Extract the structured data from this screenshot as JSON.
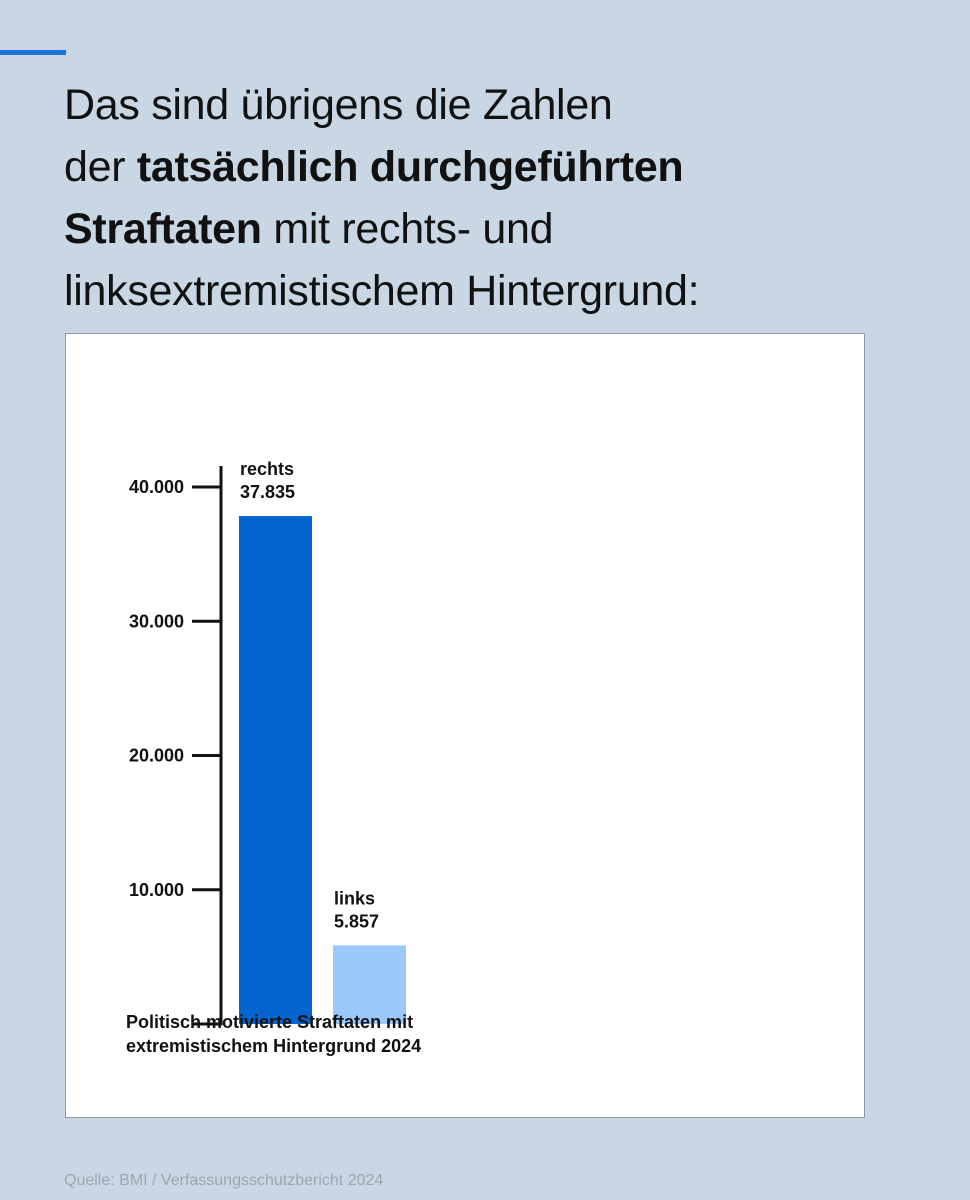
{
  "page": {
    "background": "#c9d6e3",
    "accent_color": "#1a73d6"
  },
  "headline": {
    "line1": "Das sind übrigens die Zahlen",
    "line2_prefix": "der ",
    "line2_bold": "tatsächlich durchgeführten",
    "line3_bold": "Straftaten",
    "line3_suffix": " mit rechts- und",
    "line4": "linksextremistischem Hintergrund:"
  },
  "chart_data": {
    "type": "bar",
    "categories": [
      "rechts",
      "links"
    ],
    "values": [
      37835,
      5857
    ],
    "value_labels": [
      "37.835",
      "5.857"
    ],
    "colors": [
      "#0565cf",
      "#99c8fa"
    ],
    "yticks": [
      10000,
      20000,
      30000,
      40000
    ],
    "ytick_labels": [
      "10.000",
      "20.000",
      "30.000",
      "40.000"
    ],
    "ylim": [
      0,
      40000
    ],
    "grid": false,
    "caption_line1": "Politisch motivierte Straftaten mit",
    "caption_line2": "extremistischem Hintergrund 2024"
  },
  "source": "Quelle: BMI / Verfassungsschutzbericht 2024"
}
